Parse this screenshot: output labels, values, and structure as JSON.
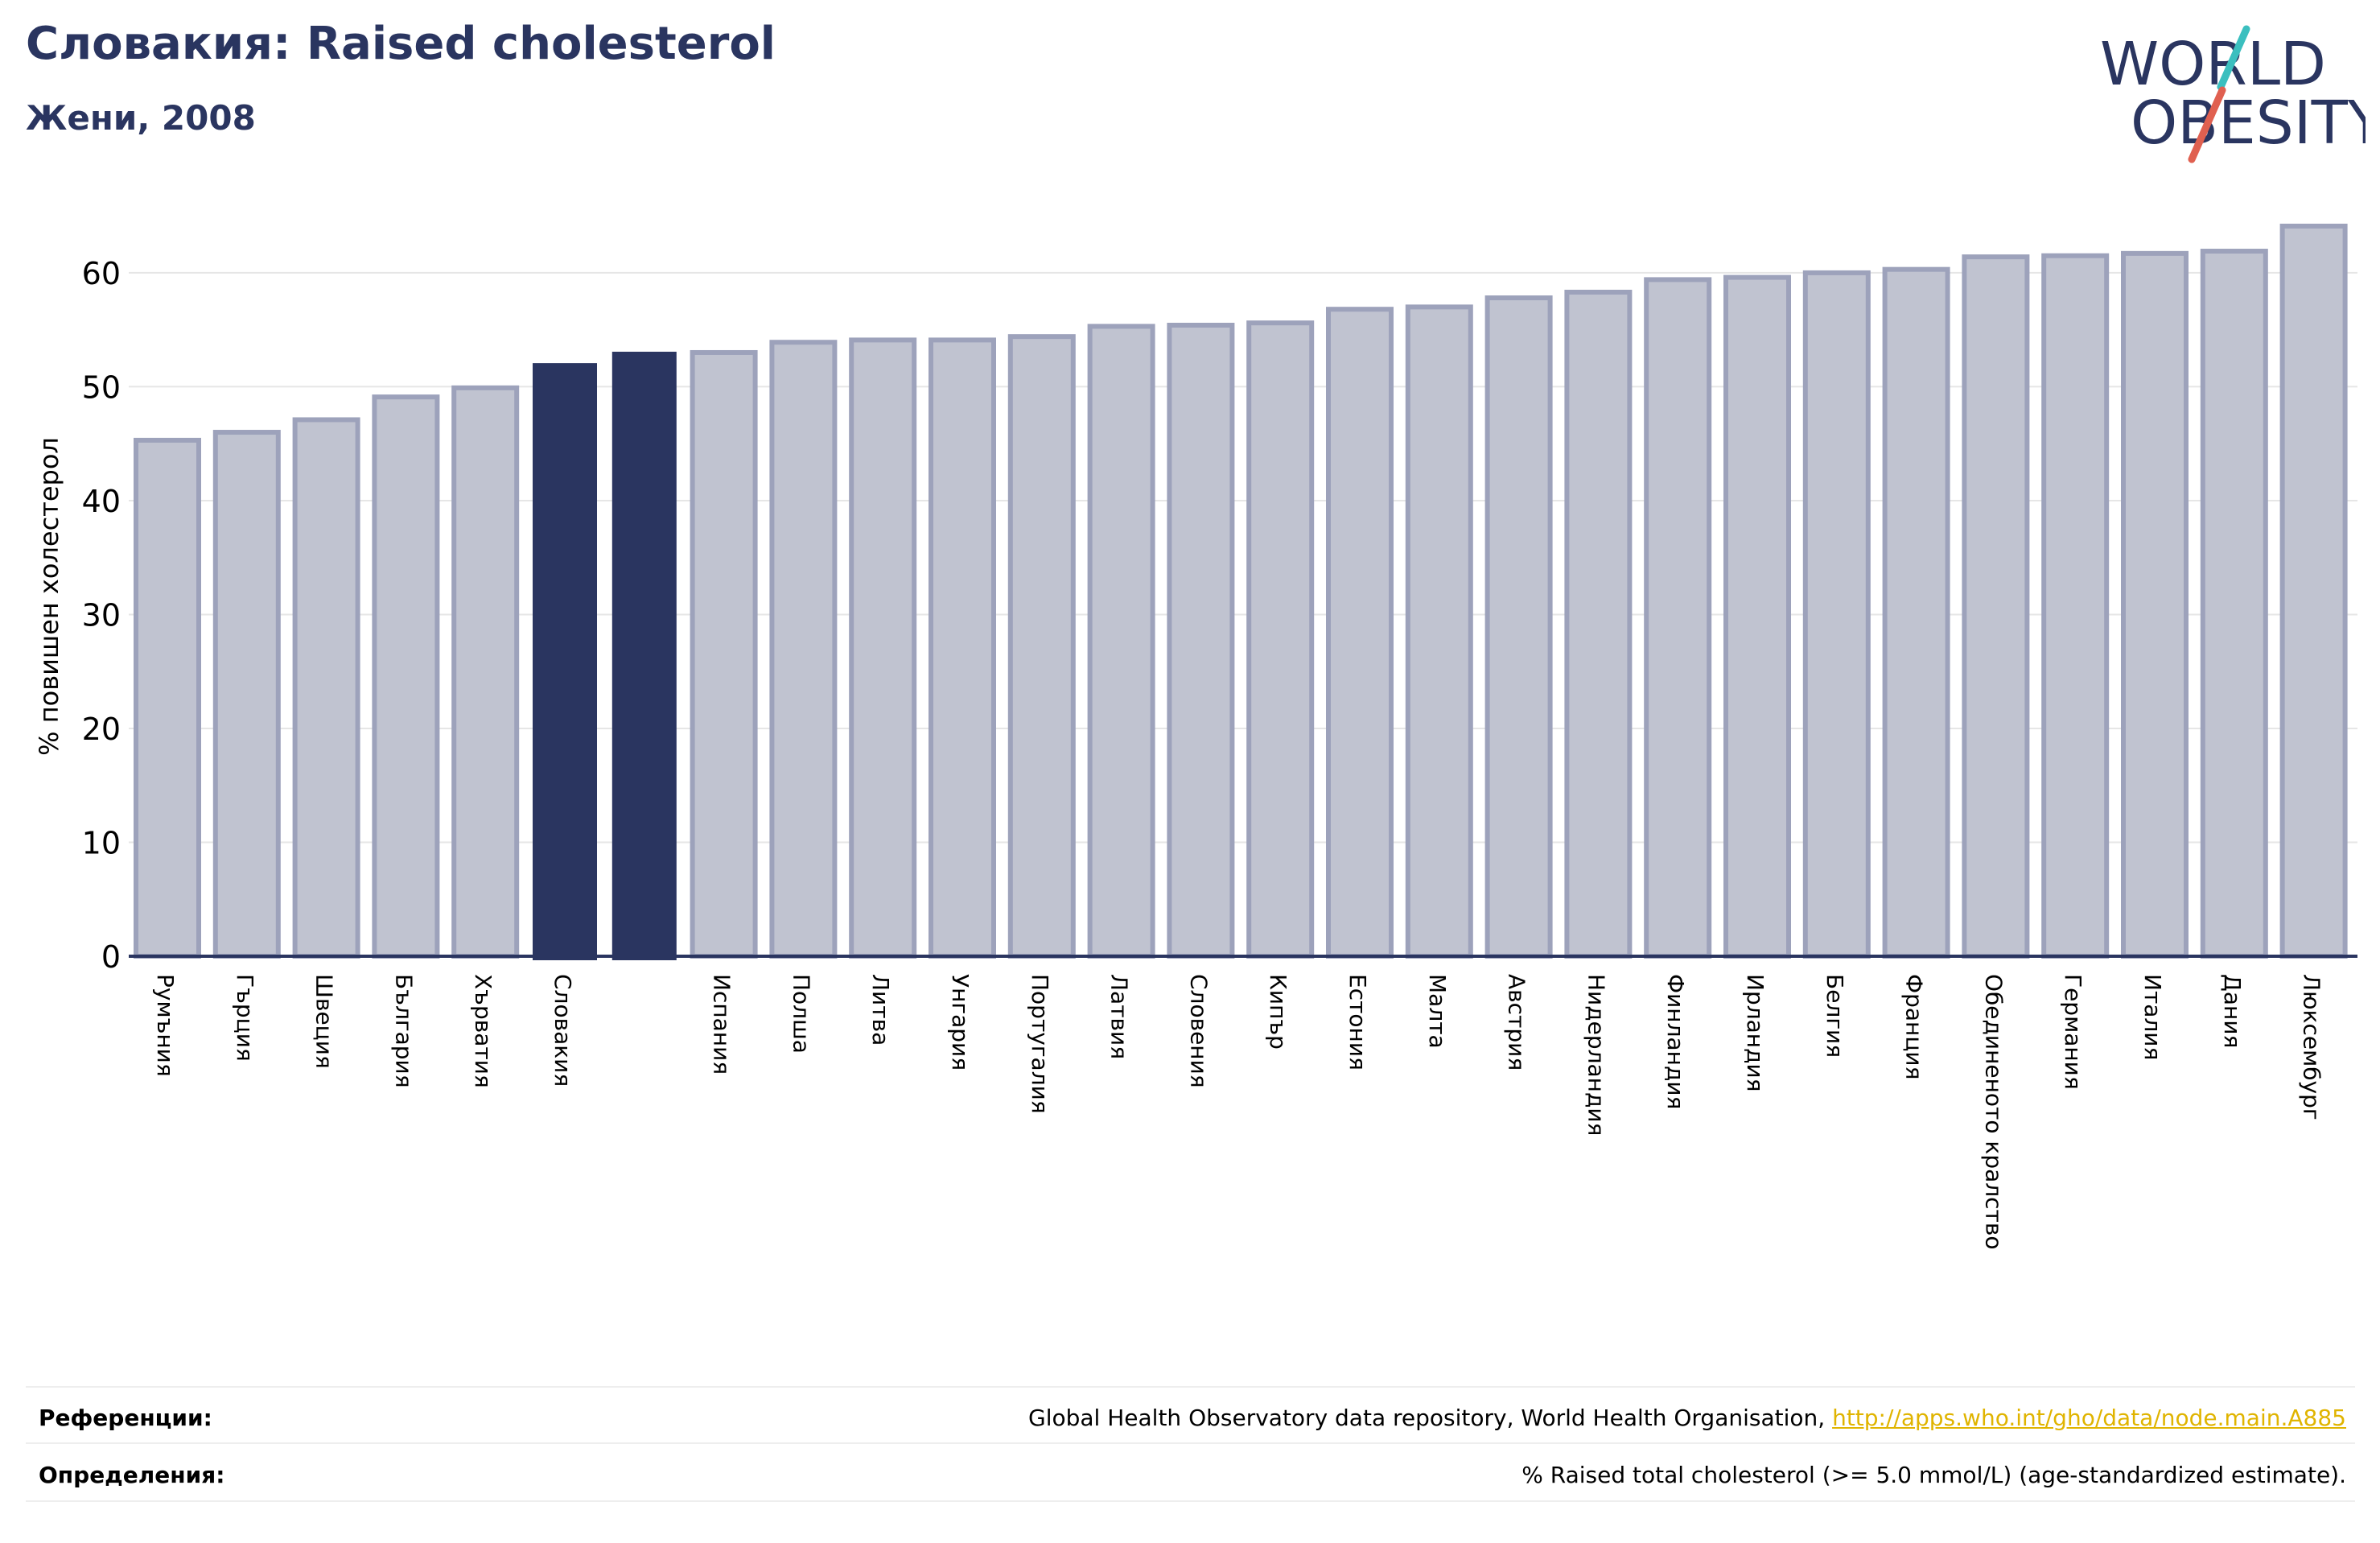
{
  "header": {
    "title": "Словакия: Raised cholesterol",
    "subtitle": "Жени, 2008"
  },
  "logo": {
    "line1": "WORLD",
    "line2": "OBESITY",
    "colors": {
      "text": "#2a3560",
      "slash_teal": "#3bbfbf",
      "slash_red": "#e06050"
    }
  },
  "chart_data": {
    "type": "bar",
    "title": "Словакия: Raised cholesterol",
    "subtitle": "Жени, 2008",
    "xlabel": "",
    "ylabel": "% повишен холестерол",
    "ylim": [
      0,
      66
    ],
    "yticks": [
      0,
      10,
      20,
      30,
      40,
      50,
      60
    ],
    "grid": true,
    "categories": [
      "Румъния",
      "Гърция",
      "Швеция",
      "България",
      "Хърватия",
      "Словакия",
      "",
      "Испания",
      "Полша",
      "Литва",
      "Унгария",
      "Португалия",
      "Латвия",
      "Словения",
      "Кипър",
      "Естония",
      "Малта",
      "Австрия",
      "Нидерландия",
      "Финландия",
      "Ирландия",
      "Белгия",
      "Франция",
      "Обединеното кралство",
      "Германия",
      "Италия",
      "Дания",
      "Люксембург"
    ],
    "values": [
      45.3,
      46.0,
      47.1,
      49.1,
      49.9,
      52.0,
      53.0,
      53.0,
      53.9,
      54.1,
      54.1,
      54.4,
      55.3,
      55.4,
      55.6,
      56.8,
      57.0,
      57.8,
      58.3,
      59.4,
      59.6,
      60.0,
      60.3,
      61.4,
      61.5,
      61.7,
      61.9,
      64.1
    ],
    "highlight": [
      5,
      6
    ],
    "colors": {
      "bar": "#c0c3d0",
      "bar_edge": "#9da2bb",
      "highlight": "#2a3560",
      "axis": "#2a3560",
      "grid": "#e6e6e6"
    }
  },
  "footer": {
    "references_label": "Референции:",
    "references_text": "Global Health Observatory data repository, World Health Organisation, ",
    "references_link": "http://apps.who.int/gho/data/node.main.A885",
    "definitions_label": "Определения:",
    "definitions_text": "% Raised total cholesterol (>= 5.0 mmol/L) (age-standardized estimate)."
  }
}
